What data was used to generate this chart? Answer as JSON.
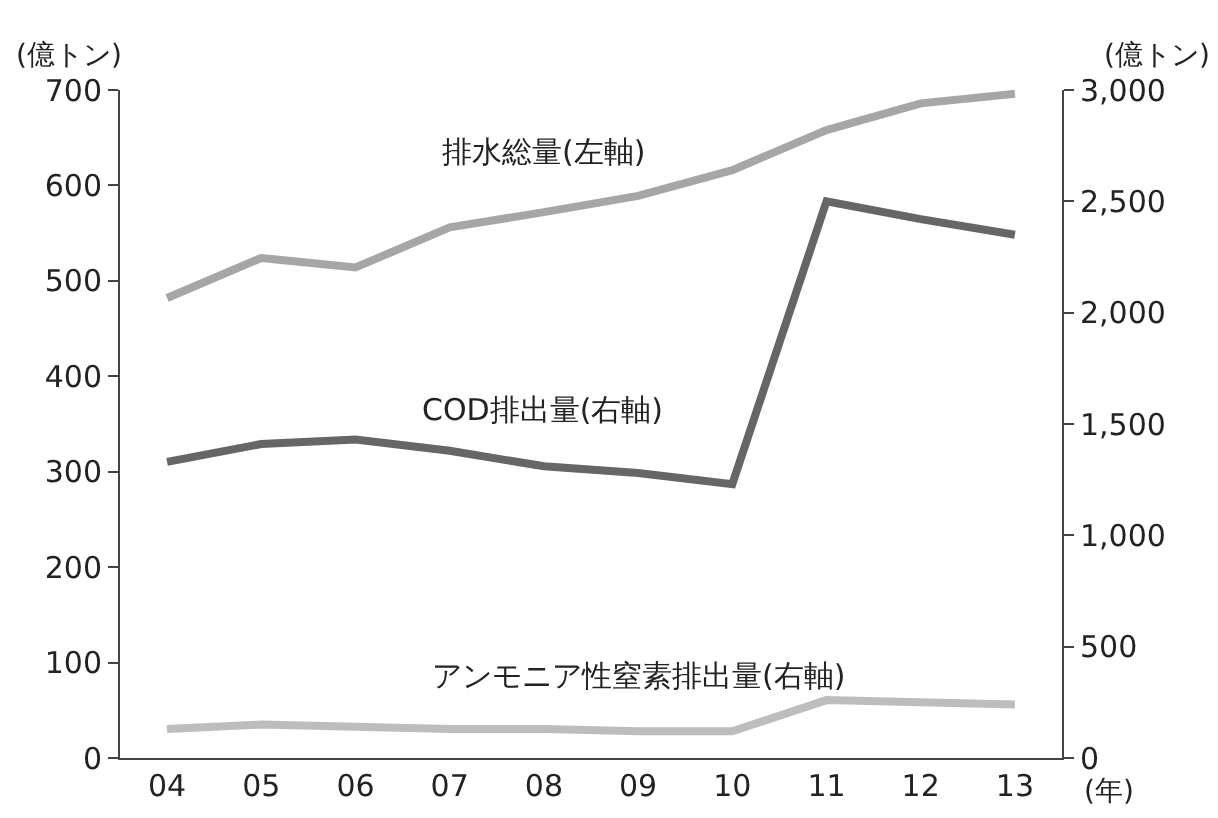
{
  "chart_data": {
    "type": "line",
    "categories": [
      "04",
      "05",
      "06",
      "07",
      "08",
      "09",
      "10",
      "11",
      "12",
      "13"
    ],
    "ylabel": "(億トン)",
    "y2label": "(億トン)",
    "xlabel": "(年)",
    "ylim": [
      0,
      700
    ],
    "yticks": [
      0,
      100,
      200,
      300,
      400,
      500,
      600,
      700
    ],
    "y2lim": [
      0,
      3000
    ],
    "y2ticks": [
      0,
      {
        "value": 500,
        "label": "500"
      },
      {
        "value": 1000,
        "label": "1,000"
      },
      {
        "value": 1500,
        "label": "1,500"
      },
      {
        "value": 2000,
        "label": "2,000"
      },
      {
        "value": 2500,
        "label": "2,500"
      },
      {
        "value": 3000,
        "label": "3,000"
      }
    ],
    "grid": false,
    "legend": false,
    "marker": "none",
    "line_style": "solid",
    "series": [
      {
        "name": "排水総量(左軸)",
        "color": "#a6a6a6",
        "values": [
          482,
          524,
          514,
          556,
          572,
          589,
          616,
          658,
          686,
          696
        ]
      },
      {
        "name": "COD排出量(右軸)",
        "color": "#666666",
        "axis": "y2",
        "values": [
          1330,
          1410,
          1430,
          1380,
          1310,
          1280,
          1230,
          2500,
          2420,
          2350
        ]
      },
      {
        "name": "アンモニア性窒素排出量(右軸)",
        "color": "#bdbdbd",
        "axis": "y2",
        "values": [
          130,
          150,
          140,
          130,
          130,
          120,
          120,
          260,
          250,
          240
        ]
      }
    ]
  }
}
